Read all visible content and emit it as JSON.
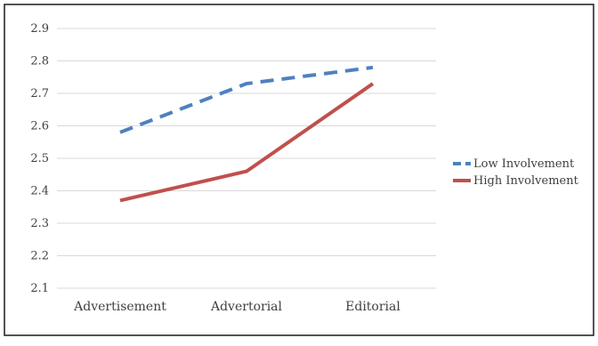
{
  "chart_data": {
    "type": "line",
    "title": "",
    "xlabel": "",
    "ylabel": "",
    "categories": [
      "Advertisement",
      "Advertorial",
      "Editorial"
    ],
    "ylim": [
      2.1,
      2.9
    ],
    "yticks": [
      "2.1",
      "2.2",
      "2.3",
      "2.4",
      "2.5",
      "2.6",
      "2.7",
      "2.8",
      "2.9"
    ],
    "grid": true,
    "legend_position": "right",
    "series": [
      {
        "name": "Low Involvement",
        "values": [
          2.58,
          2.73,
          2.78
        ],
        "color": "#4f81bd",
        "dash": "dashed"
      },
      {
        "name": "High Involvement",
        "values": [
          2.37,
          2.46,
          2.73
        ],
        "color": "#c0504d",
        "dash": "solid"
      }
    ]
  }
}
